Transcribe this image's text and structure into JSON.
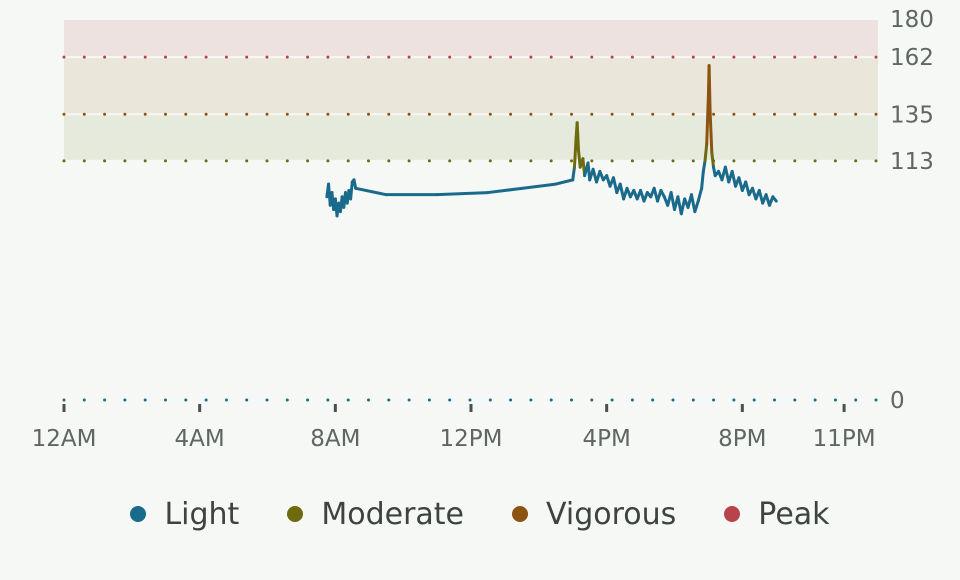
{
  "chart_data": {
    "type": "line",
    "title": "",
    "xlabel": "",
    "ylabel": "",
    "xlim": [
      0,
      24
    ],
    "ylim": [
      0,
      180
    ],
    "x_ticks": [
      {
        "value": 0,
        "label": "12AM"
      },
      {
        "value": 4,
        "label": "4AM"
      },
      {
        "value": 8,
        "label": "8AM"
      },
      {
        "value": 12,
        "label": "12PM"
      },
      {
        "value": 16,
        "label": "4PM"
      },
      {
        "value": 20,
        "label": "8PM"
      },
      {
        "value": 23,
        "label": "11PM"
      }
    ],
    "y_ticks": [
      {
        "value": 180,
        "label": "180"
      },
      {
        "value": 162,
        "label": "162"
      },
      {
        "value": 135,
        "label": "135"
      },
      {
        "value": 113,
        "label": "113"
      },
      {
        "value": 0,
        "label": "0"
      }
    ],
    "zones": [
      {
        "name": "Light",
        "from": 0,
        "to": 113,
        "color": "#1a6a8c"
      },
      {
        "name": "Moderate",
        "from": 113,
        "to": 135,
        "color": "#6e6a10",
        "band_color": "#e6eadc"
      },
      {
        "name": "Vigorous",
        "from": 135,
        "to": 162,
        "color": "#8c5410",
        "band_color": "#eae6da"
      },
      {
        "name": "Peak",
        "from": 162,
        "to": 180,
        "color": "#b8434b",
        "band_color": "#eee2e0"
      }
    ],
    "series": [
      {
        "values": [
          [
            7.75,
            96
          ],
          [
            7.8,
            102
          ],
          [
            7.85,
            92
          ],
          [
            7.9,
            98
          ],
          [
            7.95,
            90
          ],
          [
            8.0,
            95
          ],
          [
            8.05,
            87
          ],
          [
            8.1,
            93
          ],
          [
            8.15,
            89
          ],
          [
            8.2,
            96
          ],
          [
            8.25,
            91
          ],
          [
            8.3,
            98
          ],
          [
            8.35,
            93
          ],
          [
            8.4,
            99
          ],
          [
            8.45,
            95
          ],
          [
            8.5,
            103
          ],
          [
            8.55,
            104
          ],
          [
            8.6,
            100
          ],
          [
            9.5,
            97
          ],
          [
            11.0,
            97
          ],
          [
            12.5,
            98
          ],
          [
            13.5,
            100
          ],
          [
            14.5,
            102
          ],
          [
            15.0,
            104
          ],
          [
            15.05,
            110
          ],
          [
            15.1,
            124
          ],
          [
            15.13,
            131
          ],
          [
            15.17,
            118
          ],
          [
            15.22,
            110
          ],
          [
            15.3,
            114
          ],
          [
            15.35,
            106
          ],
          [
            15.45,
            112
          ],
          [
            15.5,
            104
          ],
          [
            15.6,
            109
          ],
          [
            15.7,
            103
          ],
          [
            15.8,
            108
          ],
          [
            15.9,
            104
          ],
          [
            16.0,
            106
          ],
          [
            16.1,
            101
          ],
          [
            16.2,
            105
          ],
          [
            16.3,
            98
          ],
          [
            16.4,
            102
          ],
          [
            16.5,
            95
          ],
          [
            16.6,
            100
          ],
          [
            16.7,
            96
          ],
          [
            16.8,
            99
          ],
          [
            16.9,
            95
          ],
          [
            17.0,
            99
          ],
          [
            17.1,
            94
          ],
          [
            17.2,
            98
          ],
          [
            17.3,
            96
          ],
          [
            17.4,
            100
          ],
          [
            17.5,
            94
          ],
          [
            17.6,
            99
          ],
          [
            17.7,
            96
          ],
          [
            17.8,
            92
          ],
          [
            17.9,
            98
          ],
          [
            18.0,
            90
          ],
          [
            18.1,
            96
          ],
          [
            18.2,
            88
          ],
          [
            18.3,
            95
          ],
          [
            18.4,
            91
          ],
          [
            18.5,
            97
          ],
          [
            18.6,
            89
          ],
          [
            18.7,
            94
          ],
          [
            18.8,
            100
          ],
          [
            18.85,
            108
          ],
          [
            18.9,
            113
          ],
          [
            18.95,
            121
          ],
          [
            19.0,
            144
          ],
          [
            19.02,
            158
          ],
          [
            19.05,
            136
          ],
          [
            19.1,
            117
          ],
          [
            19.15,
            110
          ],
          [
            19.2,
            106
          ],
          [
            19.3,
            108
          ],
          [
            19.4,
            104
          ],
          [
            19.5,
            110
          ],
          [
            19.6,
            103
          ],
          [
            19.7,
            108
          ],
          [
            19.8,
            101
          ],
          [
            19.9,
            105
          ],
          [
            20.0,
            99
          ],
          [
            20.1,
            103
          ],
          [
            20.2,
            97
          ],
          [
            20.3,
            100
          ],
          [
            20.4,
            95
          ],
          [
            20.5,
            99
          ],
          [
            20.6,
            93
          ],
          [
            20.7,
            97
          ],
          [
            20.8,
            92
          ],
          [
            20.9,
            96
          ],
          [
            21.0,
            94
          ]
        ]
      }
    ],
    "legend": {
      "position": "bottom",
      "entries": [
        {
          "label": "Light",
          "color": "#1a6a8c"
        },
        {
          "label": "Moderate",
          "color": "#6e6a10"
        },
        {
          "label": "Vigorous",
          "color": "#8c5410"
        },
        {
          "label": "Peak",
          "color": "#b8434b"
        }
      ]
    }
  }
}
